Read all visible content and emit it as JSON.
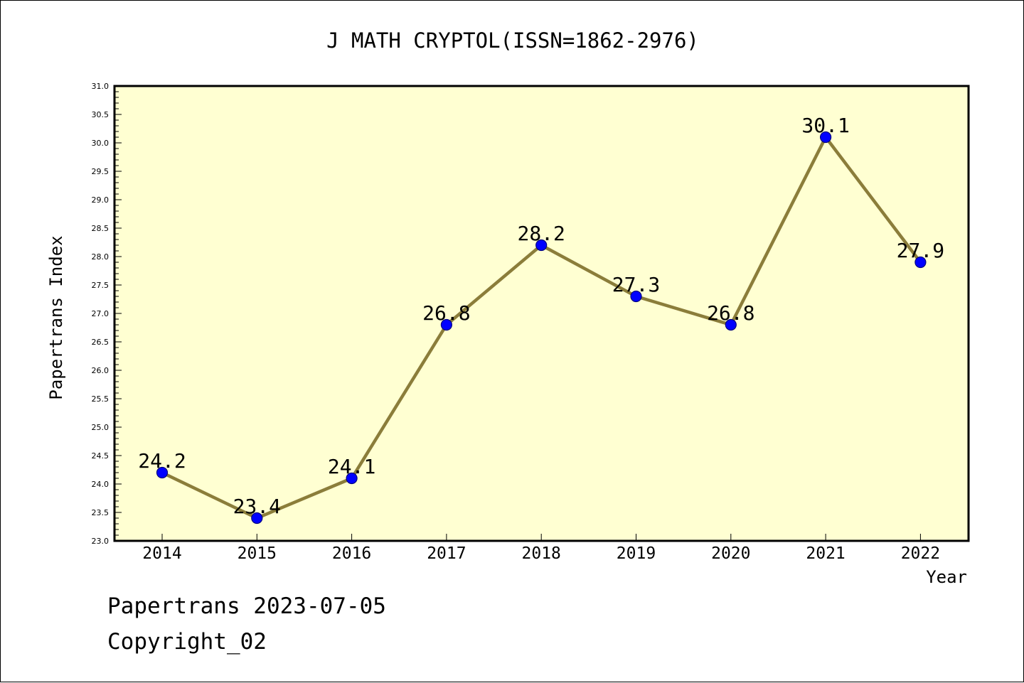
{
  "chart_data": {
    "type": "line",
    "title": "J MATH CRYPTOL(ISSN=1862-2976)",
    "xlabel": "Year",
    "ylabel": "Papertrans Index",
    "categories": [
      "2014",
      "2015",
      "2016",
      "2017",
      "2018",
      "2019",
      "2020",
      "2021",
      "2022"
    ],
    "values": [
      24.2,
      23.4,
      24.1,
      26.8,
      28.2,
      27.3,
      26.8,
      30.1,
      27.9
    ],
    "data_labels": [
      "24.2",
      "23.4",
      "24.1",
      "26.8",
      "28.2",
      "27.3",
      "26.8",
      "30.1",
      "27.9"
    ],
    "ylim": [
      23.0,
      31.0
    ],
    "y_tick_step": 0.5,
    "y_tick_labels": [
      "23.0",
      "23.5",
      "24.0",
      "24.5",
      "25.0",
      "25.5",
      "26.0",
      "26.5",
      "27.0",
      "27.5",
      "28.0",
      "28.5",
      "29.0",
      "29.5",
      "30.0",
      "30.5",
      "31.0"
    ],
    "grid": false,
    "colors": {
      "plot_background": "#ffffd2",
      "line": "#8b7d3a",
      "marker": "#0000ff",
      "marker_edge": "#000080"
    }
  },
  "footer": {
    "date_line": "Papertrans 2023-07-05",
    "copyright": "Copyright_02"
  }
}
